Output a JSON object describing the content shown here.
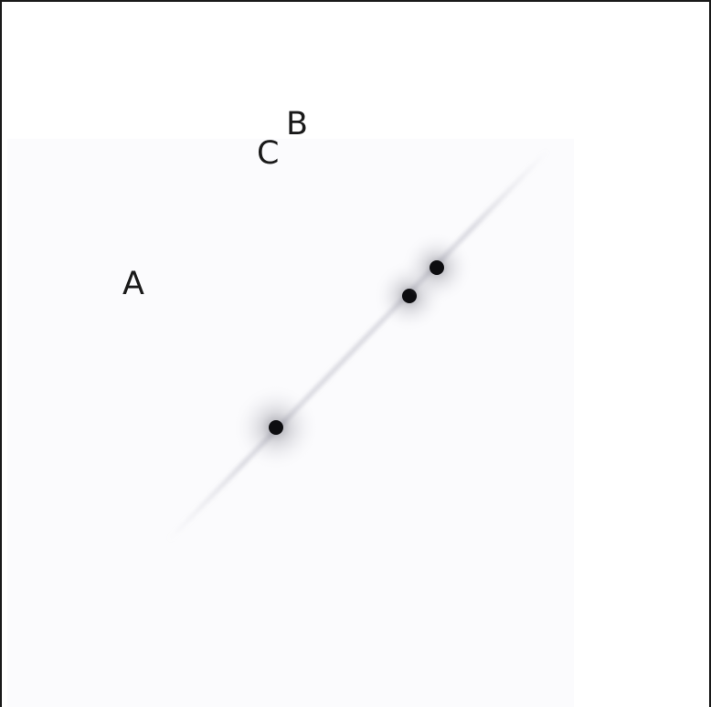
{
  "image": {
    "description_kind": "grayscale astronomical image",
    "background_color": "#ffffff",
    "frame_color": "#1a1a1a",
    "field_tint": "#fbfbfd",
    "labels": {
      "a": "A",
      "b": "B",
      "c": "C"
    }
  }
}
